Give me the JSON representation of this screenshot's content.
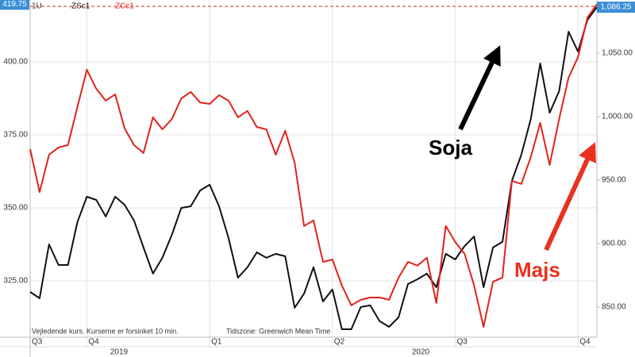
{
  "chart_data": {
    "type": "line",
    "legend_prefix": "1U",
    "categories": [
      "Q3",
      null,
      null,
      null,
      null,
      null,
      "Q4",
      null,
      null,
      null,
      null,
      null,
      null,
      null,
      null,
      null,
      null,
      null,
      null,
      "Q1",
      null,
      null,
      null,
      null,
      null,
      null,
      null,
      null,
      null,
      null,
      null,
      null,
      "Q2",
      null,
      null,
      null,
      null,
      null,
      null,
      null,
      null,
      null,
      null,
      null,
      null,
      "Q3",
      null,
      null,
      null,
      null,
      null,
      null,
      null,
      null,
      null,
      null,
      null,
      null,
      "Q4",
      null,
      null
    ],
    "year_labels": [
      "2019",
      "2020"
    ],
    "series": [
      {
        "name": "ZSc1",
        "color": "#111111",
        "axis": "y2",
        "last_label": "1,086.25",
        "values": [
          861.9,
          856.9,
          899.4,
          883.1,
          883.1,
          916.9,
          936.9,
          934.4,
          921.3,
          936.9,
          930.6,
          918.1,
          896.9,
          876.3,
          888.8,
          906.9,
          928.1,
          929.4,
          941.9,
          946.3,
          929.4,
          904.4,
          873.1,
          881.3,
          893.1,
          888.8,
          891.9,
          890,
          849.4,
          860.6,
          881.3,
          854.4,
          863.8,
          832.5,
          832.5,
          850,
          851.3,
          838.8,
          834.4,
          841.9,
          868.1,
          871.9,
          876.3,
          865.6,
          891.9,
          887.5,
          898.1,
          905.6,
          865.6,
          896.9,
          901.3,
          949.4,
          970,
          998.1,
          1041.9,
          1003.1,
          1020,
          1066.9,
          1051.3,
          1076.3,
          1086.25
        ]
      },
      {
        "name": "ZCc1",
        "color": "#e0231c",
        "axis": "y",
        "last_label": "419.75",
        "values": [
          370.1,
          355.4,
          368.2,
          370.7,
          371.5,
          384.5,
          397.3,
          390.8,
          386.7,
          388.9,
          377.2,
          371.5,
          368.8,
          381,
          376.9,
          380.4,
          387.5,
          389.7,
          386.1,
          385.6,
          388.6,
          386.7,
          381,
          383.2,
          377.7,
          376.9,
          368.2,
          376.4,
          365.5,
          343.8,
          345.7,
          331.5,
          332.3,
          323.4,
          316.6,
          318.5,
          319.3,
          319.3,
          318.5,
          326.1,
          331.5,
          330.2,
          332.9,
          317.4,
          343.8,
          338.3,
          334.2,
          323.4,
          309.2,
          324.7,
          326.1,
          359.2,
          358.2,
          367.4,
          379.1,
          364.7,
          380.4,
          394.6,
          401.6,
          415.2,
          419.75
        ]
      }
    ],
    "ylim": [
      305.7,
      421.2
    ],
    "yticks": [
      {
        "value": 325,
        "label": "325.00"
      },
      {
        "value": 350,
        "label": "350.00"
      },
      {
        "value": 375,
        "label": "375.00"
      },
      {
        "value": 400,
        "label": "400.00"
      }
    ],
    "y2lim": [
      826.25,
      1091.9
    ],
    "y2ticks": [
      {
        "value": 850,
        "label": "850.00"
      },
      {
        "value": 900,
        "label": "900.00"
      },
      {
        "value": 950,
        "label": "950.00"
      },
      {
        "value": 1000,
        "label": "1,000.00"
      },
      {
        "value": 1050,
        "label": "1,050.00"
      }
    ],
    "grid": true,
    "annotations": [
      "Soja",
      "Majs"
    ],
    "footnote": "Vejledende kurs. Kurserne er forsinket 10 min.",
    "timezone_note": "Tidszone: Greenwich Mean Time"
  }
}
